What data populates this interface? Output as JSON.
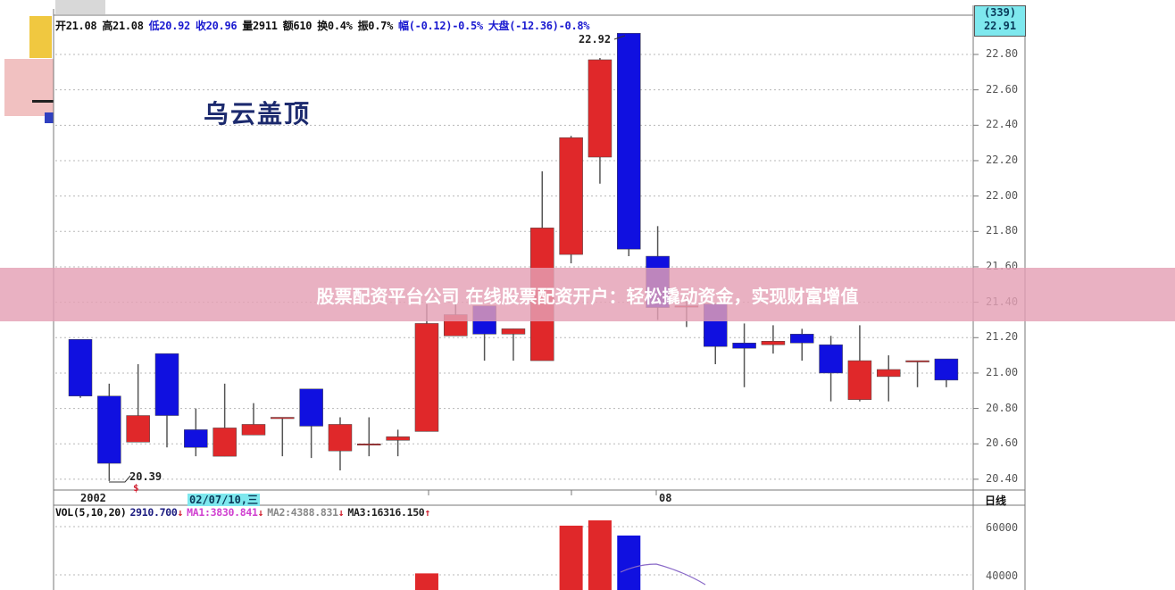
{
  "header": {
    "items": [
      {
        "text": "开21.08",
        "color": "k"
      },
      {
        "text": "高21.08",
        "color": "k"
      },
      {
        "text": "低20.92",
        "color": "b"
      },
      {
        "text": "收20.96",
        "color": "b"
      },
      {
        "text": "量2911",
        "color": "k"
      },
      {
        "text": "额610",
        "color": "k"
      },
      {
        "text": "换0.4%",
        "color": "k"
      },
      {
        "text": "振0.7%",
        "color": "k"
      },
      {
        "text": "幅(-0.12)-0.5%",
        "color": "b"
      },
      {
        "text": "大盘(-12.36)-0.8%",
        "color": "b"
      }
    ]
  },
  "pattern_title": "乌云盖顶",
  "banner_text": "股票配资平台公司 在线股票配资开户：轻松撬动资金，实现财富增值",
  "last_price_box": {
    "count": "(339)",
    "price": "22.91"
  },
  "period_label": "日线",
  "volume_header": {
    "name": "VOL(5,10,20)",
    "value": "2910.700",
    "ma1": "MA1:3830.841",
    "ma2": "MA2:4388.831",
    "ma3": "MA3:16316.150",
    "down_arrow": "↓",
    "up_arrow": "↑"
  },
  "colors": {
    "up": "#e0282a",
    "down": "#1010e0",
    "grid": "#b8b8b8",
    "banner": "#e4a0b4"
  },
  "chart_data": {
    "type": "candlestick",
    "price_axis": {
      "ylim": [
        20.35,
        22.95
      ],
      "ticks": [
        "22.80",
        "22.60",
        "22.40",
        "22.20",
        "22.00",
        "21.80",
        "21.60",
        "21.40",
        "21.20",
        "21.00",
        "20.80",
        "20.60",
        "20.40"
      ]
    },
    "volume_axis": {
      "ticks": [
        "60000",
        "40000"
      ]
    },
    "x_labels": [
      "2002",
      "02/07/10,三",
      "08"
    ],
    "annotations": {
      "high": "22.92",
      "low": "20.39",
      "low_marker": "$"
    },
    "candles": [
      {
        "o": 21.19,
        "h": 21.19,
        "l": 20.86,
        "c": 20.87
      },
      {
        "o": 20.87,
        "h": 20.94,
        "l": 20.39,
        "c": 20.49
      },
      {
        "o": 20.61,
        "h": 21.05,
        "l": 20.61,
        "c": 20.76
      },
      {
        "o": 21.11,
        "h": 21.11,
        "l": 20.58,
        "c": 20.76
      },
      {
        "o": 20.68,
        "h": 20.8,
        "l": 20.53,
        "c": 20.58
      },
      {
        "o": 20.53,
        "h": 20.94,
        "l": 20.53,
        "c": 20.69
      },
      {
        "o": 20.65,
        "h": 20.83,
        "l": 20.65,
        "c": 20.71
      },
      {
        "o": 20.75,
        "h": 20.75,
        "l": 20.53,
        "c": 20.75
      },
      {
        "o": 20.91,
        "h": 20.91,
        "l": 20.52,
        "c": 20.7
      },
      {
        "o": 20.56,
        "h": 20.75,
        "l": 20.45,
        "c": 20.71
      },
      {
        "o": 20.6,
        "h": 20.75,
        "l": 20.53,
        "c": 20.6
      },
      {
        "o": 20.62,
        "h": 20.68,
        "l": 20.53,
        "c": 20.64
      },
      {
        "o": 20.67,
        "h": 21.39,
        "l": 20.67,
        "c": 21.28
      },
      {
        "o": 21.21,
        "h": 21.39,
        "l": 21.21,
        "c": 21.33
      },
      {
        "o": 21.38,
        "h": 21.38,
        "l": 21.07,
        "c": 21.22
      },
      {
        "o": 21.22,
        "h": 21.25,
        "l": 21.07,
        "c": 21.25
      },
      {
        "o": 21.07,
        "h": 22.14,
        "l": 21.07,
        "c": 21.82
      },
      {
        "o": 21.67,
        "h": 22.34,
        "l": 21.62,
        "c": 22.33
      },
      {
        "o": 22.22,
        "h": 22.78,
        "l": 22.07,
        "c": 22.77
      },
      {
        "o": 22.92,
        "h": 22.92,
        "l": 21.66,
        "c": 21.7
      },
      {
        "o": 21.66,
        "h": 21.83,
        "l": 21.3,
        "c": 21.37
      },
      {
        "o": 21.38,
        "h": 21.45,
        "l": 21.26,
        "c": 21.38
      },
      {
        "o": 21.39,
        "h": 21.39,
        "l": 21.05,
        "c": 21.15
      },
      {
        "o": 21.17,
        "h": 21.28,
        "l": 20.92,
        "c": 21.14
      },
      {
        "o": 21.16,
        "h": 21.27,
        "l": 21.11,
        "c": 21.18
      },
      {
        "o": 21.22,
        "h": 21.25,
        "l": 21.07,
        "c": 21.17
      },
      {
        "o": 21.16,
        "h": 21.21,
        "l": 20.84,
        "c": 21.0
      },
      {
        "o": 20.85,
        "h": 21.27,
        "l": 20.84,
        "c": 21.07
      },
      {
        "o": 20.98,
        "h": 21.1,
        "l": 20.84,
        "c": 21.02
      },
      {
        "o": 21.07,
        "h": 21.07,
        "l": 20.92,
        "c": 21.07
      },
      {
        "o": 21.08,
        "h": 21.08,
        "l": 20.92,
        "c": 20.96
      }
    ],
    "volume": [
      null,
      null,
      null,
      null,
      null,
      null,
      null,
      null,
      null,
      null,
      null,
      null,
      40600,
      null,
      null,
      null,
      null,
      60400,
      62600,
      56300,
      null,
      null,
      null,
      null,
      null,
      null,
      null,
      null,
      null,
      null,
      null
    ]
  }
}
